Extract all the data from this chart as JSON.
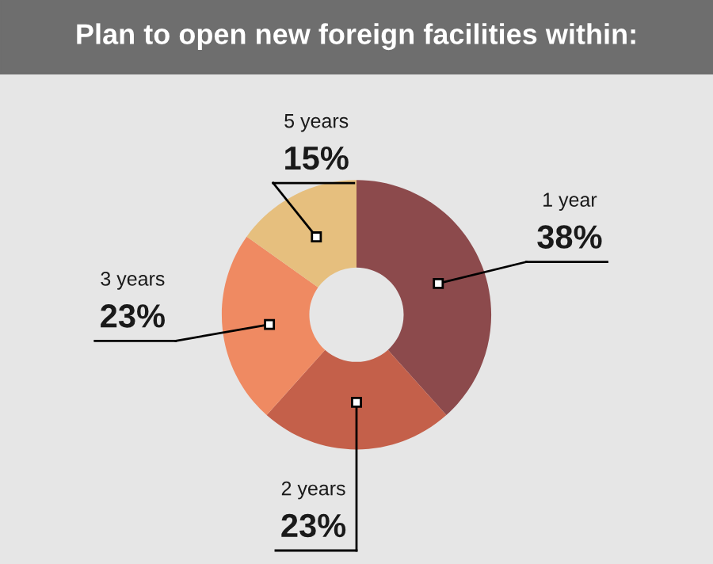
{
  "chart_data": {
    "type": "donut",
    "title": "Plan to open new foreign facilities within:",
    "categories": [
      "1 year",
      "2 years",
      "3 years",
      "5 years"
    ],
    "values": [
      38,
      23,
      23,
      15
    ],
    "colors": [
      "#8c4a4c",
      "#c4604a",
      "#ef8a62",
      "#e6bf7e"
    ],
    "value_labels": [
      "38%",
      "23%",
      "23%",
      "15%"
    ]
  }
}
